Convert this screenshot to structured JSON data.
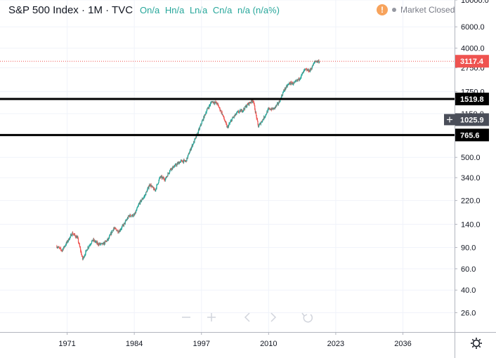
{
  "legend": {
    "title": "S&P 500 Index · 1M · TVC",
    "open": "On/a",
    "high": "Hn/a",
    "low": "Ln/a",
    "close": "Cn/a",
    "change": "n/a (n/a%)"
  },
  "status": {
    "warning_glyph": "!",
    "market": "Market Closed"
  },
  "colors": {
    "up": "#26a69a",
    "down": "#ef5350",
    "last_price_tag": "#ef5350",
    "hline": "#000000",
    "grid": "#f0f3fa",
    "crosshair_tag": "#4a4e59"
  },
  "chart_data": {
    "type": "candlestick",
    "scale": "log",
    "ylim": [
      18,
      10000
    ],
    "xlim": [
      1958,
      2046
    ],
    "y_ticks": [
      "10000.0",
      "6000.0",
      "4000.0",
      "2750.0",
      "1750.0",
      "1150.0",
      "765.6",
      "500.0",
      "340.0",
      "220.0",
      "140.0",
      "90.0",
      "60.0",
      "40.0",
      "26.0"
    ],
    "x_ticks": [
      "1971",
      "1984",
      "1997",
      "2010",
      "2023",
      "2036"
    ],
    "last_price": 3117.4,
    "last_price_label": "3117.4",
    "crosshair_price_label": "1025.9",
    "horizontal_lines": [
      {
        "value": 1519.8,
        "label": "1519.8"
      },
      {
        "value": 765.6,
        "label": "765.6"
      }
    ],
    "series": {
      "years": [
        1969,
        1970,
        1971,
        1972,
        1973,
        1974,
        1975,
        1976,
        1977,
        1978,
        1979,
        1980,
        1981,
        1982,
        1983,
        1984,
        1985,
        1986,
        1987,
        1988,
        1989,
        1990,
        1991,
        1992,
        1993,
        1994,
        1995,
        1996,
        1997,
        1998,
        1999,
        2000,
        2001,
        2002,
        2003,
        2004,
        2005,
        2006,
        2007,
        2008,
        2009,
        2010,
        2011,
        2012,
        2013,
        2014,
        2015,
        2016,
        2017,
        2018,
        2019
      ],
      "values": [
        92,
        85,
        100,
        118,
        108,
        72,
        90,
        104,
        96,
        96,
        106,
        130,
        122,
        140,
        165,
        166,
        210,
        240,
        300,
        265,
        345,
        330,
        400,
        430,
        465,
        465,
        600,
        740,
        960,
        1220,
        1450,
        1400,
        1150,
        880,
        1050,
        1180,
        1230,
        1380,
        1490,
        900,
        1050,
        1250,
        1260,
        1420,
        1800,
        2050,
        2050,
        2250,
        2650,
        2600,
        3117
      ]
    }
  }
}
